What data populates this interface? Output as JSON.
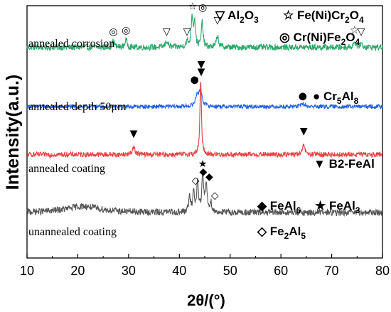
{
  "chart_data": {
    "type": "line",
    "xlabel": "2θ/(°)",
    "ylabel": "Intensity(a.u.)",
    "xlim": [
      10,
      80
    ],
    "x_ticks": [
      10,
      20,
      30,
      40,
      50,
      60,
      70,
      80
    ],
    "grid": false,
    "series": [
      {
        "name": "annealed corrosion",
        "color": "#2ea66a",
        "baseline": 0.835,
        "noise": 0.012,
        "peaks": [
          {
            "x": 27.0,
            "h": 0.025,
            "w": 0.25
          },
          {
            "x": 29.5,
            "h": 0.03,
            "w": 0.25
          },
          {
            "x": 37.5,
            "h": 0.025,
            "w": 0.3
          },
          {
            "x": 41.5,
            "h": 0.02,
            "w": 0.3
          },
          {
            "x": 42.5,
            "h": 0.12,
            "w": 0.2
          },
          {
            "x": 43.0,
            "h": 0.1,
            "w": 0.2
          },
          {
            "x": 44.5,
            "h": 0.1,
            "w": 0.2
          },
          {
            "x": 47.5,
            "h": 0.045,
            "w": 0.25
          },
          {
            "x": 74.5,
            "h": 0.02,
            "w": 0.3
          },
          {
            "x": 75.8,
            "h": 0.015,
            "w": 0.3
          }
        ]
      },
      {
        "name": "annealed depth 50μm",
        "color": "#2060e0",
        "baseline": 0.6,
        "noise": 0.008,
        "peaks": [
          {
            "x": 43.5,
            "h": 0.045,
            "w": 0.35
          },
          {
            "x": 44.2,
            "h": 0.06,
            "w": 0.35
          },
          {
            "x": 64.3,
            "h": 0.012,
            "w": 0.4
          }
        ]
      },
      {
        "name": "annealed coating",
        "color": "#e84040",
        "baseline": 0.41,
        "noise": 0.01,
        "peaks": [
          {
            "x": 31.0,
            "h": 0.035,
            "w": 0.25
          },
          {
            "x": 44.2,
            "h": 0.29,
            "w": 0.18
          },
          {
            "x": 64.5,
            "h": 0.04,
            "w": 0.25
          }
        ]
      },
      {
        "name": "unannealed coating",
        "color": "#555555",
        "baseline": 0.18,
        "noise": 0.013,
        "peaks": [
          {
            "x": 21.0,
            "h": 0.025,
            "w": 4.0
          },
          {
            "x": 42.0,
            "h": 0.06,
            "w": 0.2
          },
          {
            "x": 42.8,
            "h": 0.08,
            "w": 0.2
          },
          {
            "x": 43.6,
            "h": 0.12,
            "w": 0.2
          },
          {
            "x": 44.6,
            "h": 0.14,
            "w": 0.22
          },
          {
            "x": 45.3,
            "h": 0.11,
            "w": 0.2
          },
          {
            "x": 46.2,
            "h": 0.04,
            "w": 0.2
          }
        ]
      }
    ],
    "phase_markers": [
      {
        "symbol": "◎",
        "x": 27.0,
        "y": 0.885
      },
      {
        "symbol": "◎",
        "x": 29.5,
        "y": 0.89
      },
      {
        "symbol": "▽",
        "x": 37.5,
        "y": 0.885
      },
      {
        "symbol": "▽",
        "x": 41.5,
        "y": 0.885
      },
      {
        "symbol": "☆",
        "x": 42.6,
        "y": 0.985
      },
      {
        "symbol": "◎",
        "x": 44.6,
        "y": 0.98
      },
      {
        "symbol": "▽",
        "x": 47.5,
        "y": 0.93
      },
      {
        "symbol": "☆",
        "x": 74.5,
        "y": 0.89
      },
      {
        "symbol": "▽",
        "x": 75.8,
        "y": 0.885
      },
      {
        "symbol": "●",
        "x": 43.0,
        "y": 0.695
      },
      {
        "symbol": "▼",
        "x": 44.3,
        "y": 0.755
      },
      {
        "symbol": "●",
        "x": 64.3,
        "y": 0.63
      },
      {
        "symbol": "▼",
        "x": 44.3,
        "y": 0.725
      },
      {
        "symbol": "▼",
        "x": 31.0,
        "y": 0.48
      },
      {
        "symbol": "▼",
        "x": 64.5,
        "y": 0.49
      },
      {
        "symbol": "★",
        "x": 44.6,
        "y": 0.36
      },
      {
        "symbol": "◆",
        "x": 44.7,
        "y": 0.33
      },
      {
        "symbol": "◆",
        "x": 45.9,
        "y": 0.31
      },
      {
        "symbol": "◇",
        "x": 43.2,
        "y": 0.295
      },
      {
        "symbol": "◇",
        "x": 47.0,
        "y": 0.235
      }
    ],
    "legend": [
      {
        "symbol": "▽",
        "text": "Al",
        "sub": "2",
        "text2": "O",
        "sub2": "3",
        "text3": ""
      },
      {
        "symbol": "☆",
        "text": "Fe(Ni)Cr",
        "sub": "2",
        "text2": "O",
        "sub2": "4",
        "text3": ""
      },
      {
        "symbol": "◎",
        "text": "Cr(Ni)Fe",
        "sub": "2",
        "text2": "O",
        "sub2": "4",
        "text3": ""
      },
      {
        "symbol": "●",
        "text": "Cr",
        "sub": "5",
        "text2": "Al",
        "sub2": "8",
        "text3": ""
      },
      {
        "symbol": "▼",
        "text": "B2-FeAl",
        "sub": "",
        "text2": "",
        "sub2": "",
        "text3": ""
      },
      {
        "symbol": "◆",
        "text": "FeAl",
        "sub": "6",
        "text2": "",
        "sub2": "",
        "text3": ""
      },
      {
        "symbol": "★",
        "text": "FeAl",
        "sub": "3",
        "text2": "",
        "sub2": "",
        "text3": ""
      },
      {
        "symbol": "◇",
        "text": "Fe",
        "sub": "2",
        "text2": "Al",
        "sub2": "5",
        "text3": ""
      }
    ]
  }
}
